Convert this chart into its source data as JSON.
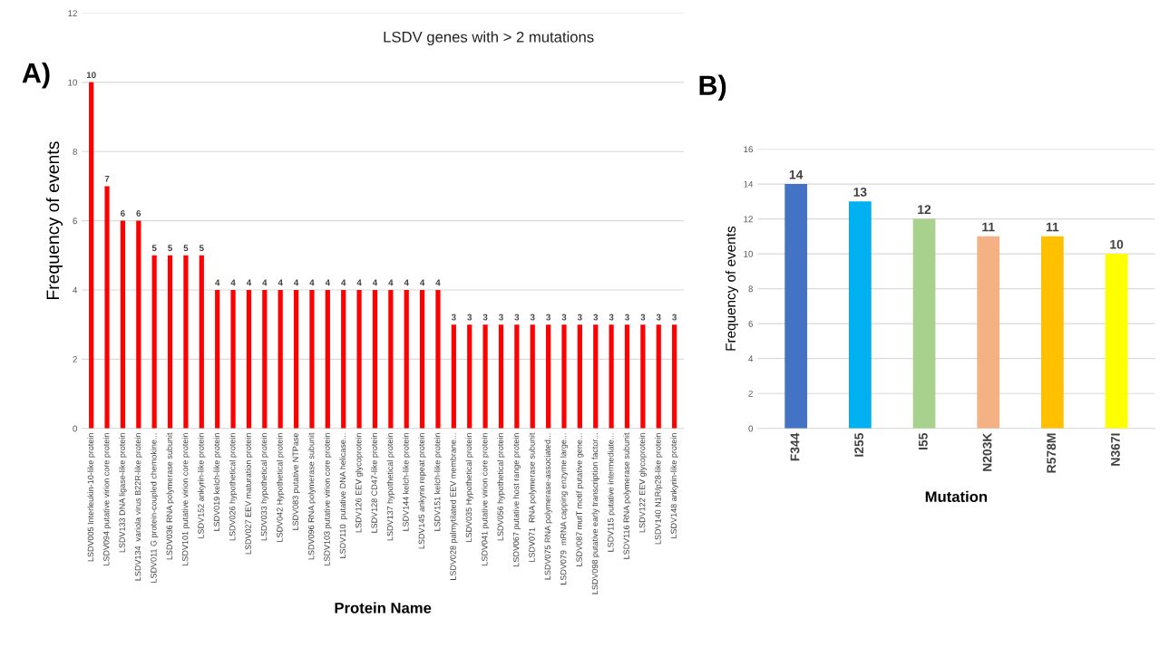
{
  "chart_data": [
    {
      "type": "bar",
      "title": "LSDV genes with > 2 mutations",
      "xlabel": "Protein Name",
      "ylabel": "Frequency of events",
      "annotations": [
        "A)"
      ],
      "categories": [
        "LSDV005 Interleukin-10-like protein",
        "LSDV094 putative virion core protein",
        "LSDV133 DNA ligase-like protein",
        "LSDV134  variola virus B22R-like protein",
        "LSDV011 G protein-coupled chemokine...",
        "LSDV036 RNA polymerase subunit",
        "LSDV101 putative virion core protein",
        "LSDV152 ankyrin-like protein",
        "LSDV019 kelch-like protein",
        "LSDV026 hypothetical protein",
        "LSDV027 EEV maturation protein",
        "LSDV033 hypothetical protein",
        "LSDV042 Hypothetical protein",
        "LSDV083 putative NTPase",
        "LSDV096 RNA polymerase subunit",
        "LSDV103 putative virion core protein",
        "LSDV110  putative DNA helicase...",
        "LSDV126 EEV glycoprotein",
        "LSDV128 CD47-like protein",
        "LSDV137 hypothetical protein",
        "LSDV144 kelch-like protein",
        "LSDV145 ankyrin repeat protein",
        "LSDV151 kelch-like protein",
        "LSDV028 palmytilated EEV membrane...",
        "LSDV035 Hypothetical protein",
        "LSDV041 putative virion core protein",
        "LSDV056 hypothetical protein",
        "LSDV067 putative host range protein",
        "LSDV071  RNA polymerase subunit",
        "LSDV075 RNA polymerase-associated...",
        "LSDV079  mRNA capping enzyme large...",
        "LSDV087 mutT motif putative gene...",
        "LSDV098 putative early transcription factor...",
        "LSDV115 putative intermediate...",
        "LSDV116 RNA polymerase subunit",
        "LSDV122 EEV glycoprotein",
        "LSDV140 N1R/p28-like protein",
        "LSDV148 ankyrin-like protein"
      ],
      "values": [
        10,
        7,
        6,
        6,
        5,
        5,
        5,
        5,
        4,
        4,
        4,
        4,
        4,
        4,
        4,
        4,
        4,
        4,
        4,
        4,
        4,
        4,
        4,
        3,
        3,
        3,
        3,
        3,
        3,
        3,
        3,
        3,
        3,
        3,
        3,
        3,
        3,
        3
      ],
      "color": "#ff0000",
      "ylim": [
        0,
        12
      ],
      "yticks": [
        0,
        2,
        4,
        6,
        8,
        10,
        12
      ],
      "grid": "y",
      "data_labels": true
    },
    {
      "type": "bar",
      "xlabel": "Mutation",
      "ylabel": "Frequency of events",
      "annotations": [
        "B)"
      ],
      "categories": [
        "F344",
        "I255",
        "I55",
        "N203K",
        "R578M",
        "N367I"
      ],
      "values": [
        14,
        13,
        12,
        11,
        11,
        10
      ],
      "colors": [
        "#4472c4",
        "#00b0f0",
        "#a9d18e",
        "#f4b183",
        "#ffc000",
        "#ffff00"
      ],
      "ylim": [
        0,
        16
      ],
      "yticks": [
        0,
        2,
        4,
        6,
        8,
        10,
        12,
        14,
        16
      ],
      "grid": "y",
      "data_labels": true
    }
  ]
}
